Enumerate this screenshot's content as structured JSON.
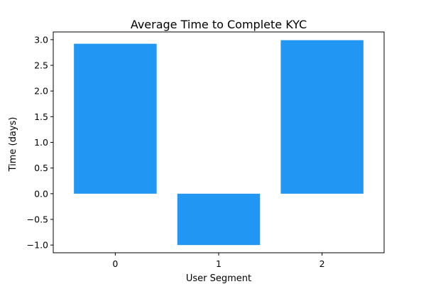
{
  "chart_data": {
    "type": "bar",
    "title": "Average Time to Complete KYC",
    "xlabel": "User Segment",
    "ylabel": "Time (days)",
    "categories": [
      "0",
      "1",
      "2"
    ],
    "values": [
      2.92,
      -1.0,
      2.99
    ],
    "ylim": [
      -1.15,
      3.15
    ],
    "yticks": [
      3.0,
      2.5,
      2.0,
      1.5,
      1.0,
      0.5,
      0.0,
      -0.5,
      -1.0
    ],
    "ytick_labels": [
      "3.0",
      "2.5",
      "2.0",
      "1.5",
      "1.0",
      "0.5",
      "0.0",
      "−0.5",
      "−1.0"
    ],
    "bar_color": "#2196f3",
    "grid": false,
    "legend": "none"
  }
}
